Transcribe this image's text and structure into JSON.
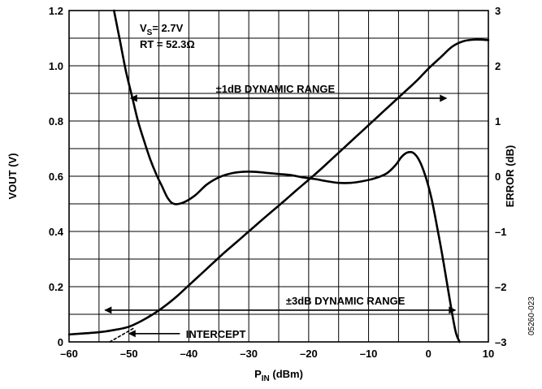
{
  "chart_data": {
    "type": "line",
    "xlabel": {
      "main": "P",
      "sub": "IN",
      "suffix": " (dBm)"
    },
    "ylabel_left": "VOUT (V)",
    "ylabel_right": "ERROR (dB)",
    "xlim": [
      -60,
      10
    ],
    "ylim_left": [
      0,
      1.2
    ],
    "ylim_right": [
      -3,
      3
    ],
    "xticks": [
      -60,
      -50,
      -40,
      -30,
      -20,
      -10,
      0,
      10
    ],
    "xtick_labels": [
      "–60",
      "–50",
      "–40",
      "–30",
      "–20",
      "–10",
      "0",
      "10"
    ],
    "yticks_left": [
      0,
      0.2,
      0.4,
      0.6,
      0.8,
      1.0,
      1.2
    ],
    "ytick_labels_left": [
      "0",
      "0.2",
      "0.4",
      "0.6",
      "0.8",
      "1.0",
      "1.2"
    ],
    "yticks_right": [
      -3,
      -2,
      -1,
      0,
      1,
      2,
      3
    ],
    "ytick_labels_right": [
      "–3",
      "–2",
      "–1",
      "0",
      "1",
      "2",
      "3"
    ],
    "grid": true,
    "series": [
      {
        "axis": "left",
        "x": [
          -60,
          -55,
          -52,
          -50,
          -48,
          -46,
          -44,
          -42,
          -40,
          -38,
          -36,
          -34,
          -32,
          -30,
          -28,
          -26,
          -24,
          -22,
          -20,
          -18,
          -16,
          -14,
          -12,
          -10,
          -8,
          -6,
          -4,
          -2,
          0,
          2,
          4,
          6,
          8,
          10
        ],
        "values": [
          0.027,
          0.035,
          0.045,
          0.055,
          0.075,
          0.1,
          0.13,
          0.165,
          0.205,
          0.245,
          0.285,
          0.325,
          0.362,
          0.4,
          0.438,
          0.475,
          0.512,
          0.55,
          0.587,
          0.625,
          0.665,
          0.705,
          0.745,
          0.785,
          0.825,
          0.865,
          0.905,
          0.945,
          0.99,
          1.03,
          1.07,
          1.09,
          1.095,
          1.093
        ]
      },
      {
        "axis": "right",
        "x": [
          -52.5,
          -51.5,
          -50.5,
          -49.5,
          -48.5,
          -47.5,
          -46.5,
          -45.5,
          -44.5,
          -43.5,
          -42.5,
          -41,
          -39,
          -37,
          -35,
          -33,
          -31,
          -29,
          -27,
          -25,
          -23,
          -21,
          -19,
          -17,
          -15,
          -13,
          -11,
          -9,
          -7,
          -5.5,
          -4.5,
          -3.5,
          -2.5,
          -1.5,
          -0.5,
          0.5,
          1.5,
          2.5,
          3.5,
          4.5,
          5.2
        ],
        "values": [
          3.0,
          2.45,
          1.9,
          1.45,
          1.0,
          0.65,
          0.32,
          0.05,
          -0.18,
          -0.4,
          -0.5,
          -0.48,
          -0.35,
          -0.15,
          -0.02,
          0.05,
          0.08,
          0.08,
          0.06,
          0.04,
          0.02,
          -0.02,
          -0.05,
          -0.09,
          -0.12,
          -0.12,
          -0.09,
          -0.04,
          0.05,
          0.2,
          0.35,
          0.43,
          0.42,
          0.28,
          0.0,
          -0.4,
          -0.95,
          -1.55,
          -2.2,
          -2.8,
          -3.0
        ]
      },
      {
        "axis": "left",
        "style": "dashed",
        "x": [
          -53.2,
          -49.2
        ],
        "values": [
          0.0,
          0.05
        ]
      }
    ],
    "annotations": {
      "vs_main": "V",
      "vs_sub": "S",
      "vs_value": "= 2.7V",
      "rt": "RT = 52.3Ω",
      "range_1db": "±1dB DYNAMIC RANGE",
      "range_1db_span": [
        -50,
        3
      ],
      "range_1db_level": 0.8825,
      "range_3db": "±3dB DYNAMIC RANGE",
      "range_3db_span": [
        -54,
        4.5
      ],
      "range_3db_level": 0.115,
      "intercept": "INTERCEPT",
      "intercept_arrow_x": [
        -41.5,
        -50
      ],
      "intercept_level": 0.03,
      "figure_id": "05260-023"
    }
  }
}
